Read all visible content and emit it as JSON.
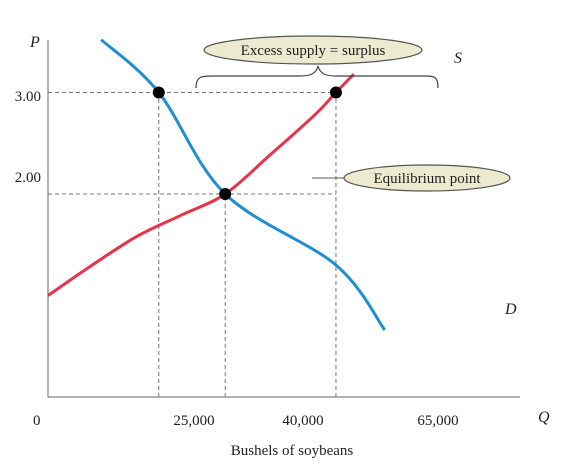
{
  "chart_data": {
    "type": "line",
    "ylabel": "P",
    "xlabel": "Q",
    "x_caption": "Bushels of soybeans",
    "origin_label": "0",
    "xlim": [
      0,
      76000
    ],
    "ylim": [
      0,
      3.55
    ],
    "x_ticks": [
      {
        "value": 25000,
        "label": "25,000"
      },
      {
        "value": 40000,
        "label": "40,000"
      },
      {
        "value": 65000,
        "label": "65,000"
      }
    ],
    "y_ticks": [
      {
        "value": 3.0,
        "label": "3.00"
      },
      {
        "value": 2.0,
        "label": "2.00"
      }
    ],
    "series": [
      {
        "name": "S",
        "color": "#e8334a",
        "points": [
          [
            0,
            1.0
          ],
          [
            10000,
            1.3
          ],
          [
            20000,
            1.58
          ],
          [
            30000,
            1.79
          ],
          [
            40000,
            2.0
          ],
          [
            50000,
            2.38
          ],
          [
            60000,
            2.77
          ],
          [
            65000,
            3.0
          ],
          [
            69000,
            3.18
          ]
        ]
      },
      {
        "name": "D",
        "color": "#1f8fd1",
        "points": [
          [
            12000,
            3.52
          ],
          [
            25000,
            3.0
          ],
          [
            40000,
            2.0
          ],
          [
            65000,
            1.3
          ],
          [
            76000,
            0.66
          ]
        ]
      }
    ],
    "reference_lines": [
      {
        "y": 3.0,
        "x_from": 0,
        "x_to": 65000
      },
      {
        "y": 2.0,
        "x_from": 0,
        "x_to": 65000
      },
      {
        "x": 25000,
        "y_from": 0,
        "y_to": 3.0
      },
      {
        "x": 40000,
        "y_from": 0,
        "y_to": 2.0
      },
      {
        "x": 65000,
        "y_from": 0,
        "y_to": 3.0
      }
    ],
    "points": [
      {
        "name": "excess-supply-demand-point",
        "x": 25000,
        "y": 3.0
      },
      {
        "name": "excess-supply-supply-point",
        "x": 65000,
        "y": 3.0
      },
      {
        "name": "equilibrium-point",
        "x": 40000,
        "y": 2.0
      }
    ],
    "annotations": [
      {
        "name": "excess-supply-callout",
        "text": "Excess supply = surplus"
      },
      {
        "name": "equilibrium-callout",
        "text": "Equilibrium point"
      }
    ]
  }
}
